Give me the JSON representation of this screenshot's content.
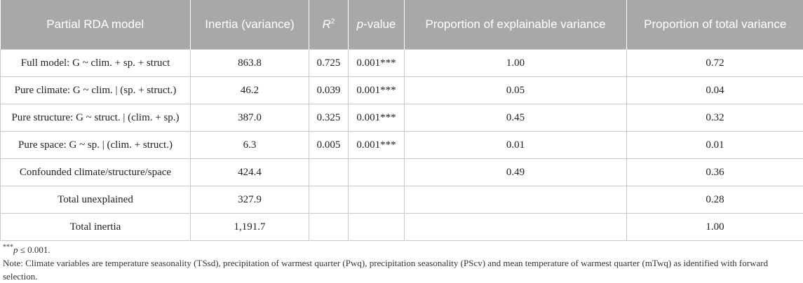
{
  "header": {
    "model": "Partial RDA model",
    "inertia": "Inertia (variance)",
    "r2_base": "R",
    "r2_sup": "2",
    "pvalue_italic": "p",
    "pvalue_rest": "-value",
    "prop_explainable": "Proportion of explainable variance",
    "prop_total": "Proportion of total variance"
  },
  "rows": [
    {
      "model": "Full model: G ~ clim. + sp. + struct",
      "inertia": "863.8",
      "r2": "0.725",
      "p": "0.001***",
      "explainable": "1.00",
      "total": "0.72"
    },
    {
      "model": "Pure climate: G ~ clim. | (sp. + struct.)",
      "inertia": "46.2",
      "r2": "0.039",
      "p": "0.001***",
      "explainable": "0.05",
      "total": "0.04"
    },
    {
      "model": "Pure structure: G ~ struct. | (clim. + sp.)",
      "inertia": "387.0",
      "r2": "0.325",
      "p": "0.001***",
      "explainable": "0.45",
      "total": "0.32"
    },
    {
      "model": "Pure space: G ~ sp. | (clim. + struct.)",
      "inertia": "6.3",
      "r2": "0.005",
      "p": "0.001***",
      "explainable": "0.01",
      "total": "0.01"
    },
    {
      "model": "Confounded climate/structure/space",
      "inertia": "424.4",
      "r2": "",
      "p": "",
      "explainable": "0.49",
      "total": "0.36"
    },
    {
      "model": "Total unexplained",
      "inertia": "327.9",
      "r2": "",
      "p": "",
      "explainable": "",
      "total": "0.28"
    },
    {
      "model": "Total inertia",
      "inertia": "1,191.7",
      "r2": "",
      "p": "",
      "explainable": "",
      "total": "1.00"
    }
  ],
  "footnotes": {
    "sig_stars": "***",
    "sig_p": "p",
    "sig_rest": " ≤ 0.001.",
    "note": "Note: Climate variables are temperature seasonality (TSsd), precipitation of warmest quarter (Pwq), precipitation seasonality (PScv) and mean temperature of warmest quarter (mTwq) as identified with forward selection."
  }
}
